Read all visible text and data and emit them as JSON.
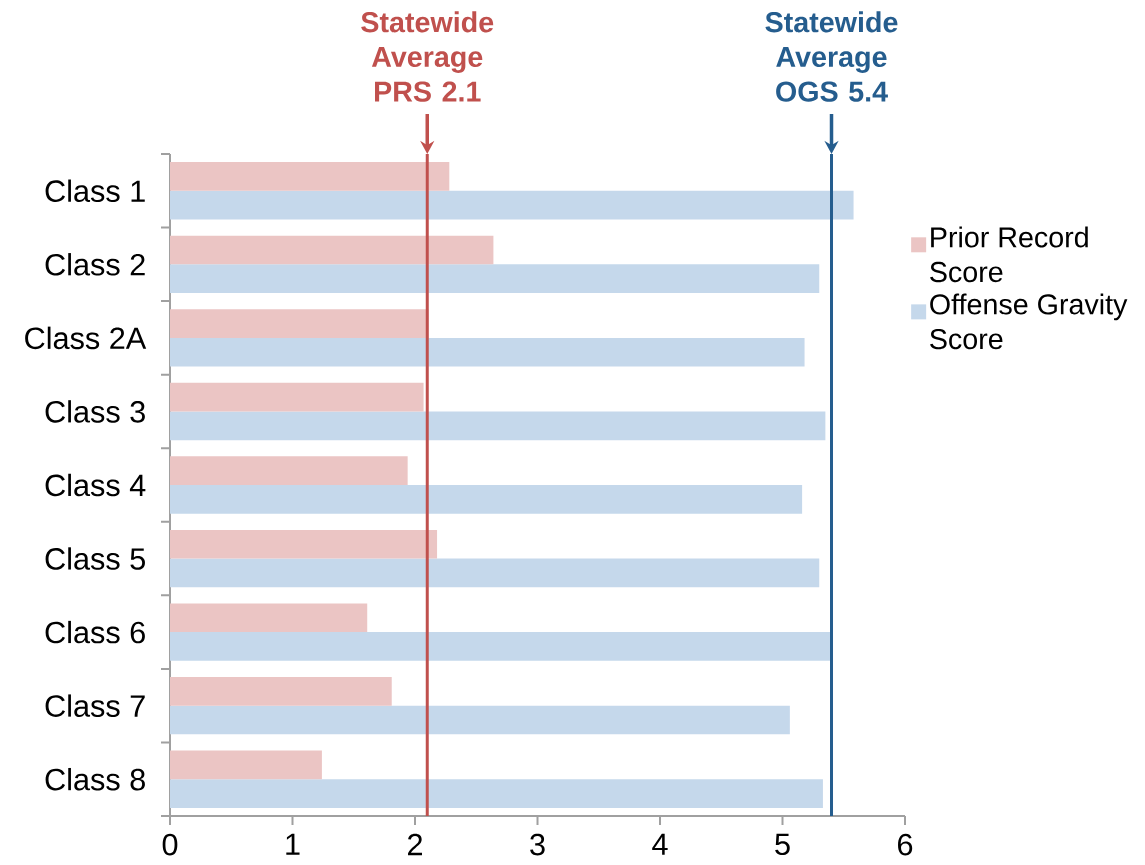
{
  "chart_data": {
    "type": "bar",
    "orientation": "horizontal",
    "categories": [
      "Class 1",
      "Class 2",
      "Class 2A",
      "Class 3",
      "Class 4",
      "Class 5",
      "Class 6",
      "Class 7",
      "Class 8"
    ],
    "series": [
      {
        "name": "Prior Record Score",
        "color": "#ebc5c4",
        "values": [
          2.28,
          2.64,
          2.11,
          2.07,
          1.94,
          2.18,
          1.61,
          1.81,
          1.24
        ]
      },
      {
        "name": "Offense Gravity Score",
        "color": "#c5d8eb",
        "values": [
          5.58,
          5.3,
          5.18,
          5.35,
          5.16,
          5.3,
          5.4,
          5.06,
          5.33
        ]
      }
    ],
    "xlim": [
      0,
      6
    ],
    "xticks": [
      0,
      1,
      2,
      3,
      4,
      5,
      6
    ],
    "ref_lines": [
      {
        "axis": "x",
        "value": 2.1,
        "label": "Statewide Average PRS 2.1",
        "color": "#c0504d"
      },
      {
        "axis": "x",
        "value": 5.4,
        "label": "Statewide Average OGS 5.4",
        "color": "#255d8e"
      }
    ],
    "legend": "right"
  }
}
